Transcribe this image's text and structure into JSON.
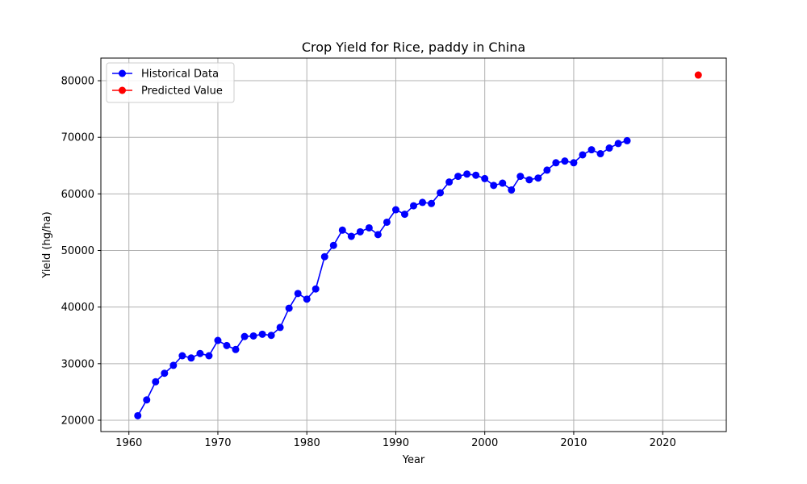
{
  "chart_data": {
    "type": "line",
    "title": "Crop Yield for Rice, paddy in China",
    "xlabel": "Year",
    "ylabel": "Yield (hg/ha)",
    "xlim": [
      1956.85,
      2027.15
    ],
    "ylim": [
      18000,
      84000
    ],
    "xticks": [
      1960,
      1970,
      1980,
      1990,
      2000,
      2010,
      2020
    ],
    "yticks": [
      20000,
      30000,
      40000,
      50000,
      60000,
      70000,
      80000
    ],
    "grid": true,
    "legend_position": "top-left",
    "series": [
      {
        "name": "Historical Data",
        "color": "#0000ff",
        "marker": "circle",
        "line": true,
        "x": [
          1961,
          1962,
          1963,
          1964,
          1965,
          1966,
          1967,
          1968,
          1969,
          1970,
          1971,
          1972,
          1973,
          1974,
          1975,
          1976,
          1977,
          1978,
          1979,
          1980,
          1981,
          1982,
          1983,
          1984,
          1985,
          1986,
          1987,
          1988,
          1989,
          1990,
          1991,
          1992,
          1993,
          1994,
          1995,
          1996,
          1997,
          1998,
          1999,
          2000,
          2001,
          2002,
          2003,
          2004,
          2005,
          2006,
          2007,
          2008,
          2009,
          2010,
          2011,
          2012,
          2013,
          2014,
          2015,
          2016
        ],
        "y": [
          20800,
          23600,
          26800,
          28300,
          29700,
          31400,
          31000,
          31800,
          31400,
          34100,
          33200,
          32500,
          34800,
          34900,
          35200,
          35000,
          36400,
          39800,
          42400,
          41400,
          43200,
          48900,
          50900,
          53600,
          52500,
          53300,
          54000,
          52800,
          55000,
          57200,
          56400,
          57900,
          58500,
          58300,
          60200,
          62100,
          63100,
          63500,
          63300,
          62700,
          61500,
          61900,
          60700,
          63100,
          62500,
          62800,
          64200,
          65500,
          65800,
          65500,
          66900,
          67800,
          67100,
          68100,
          68900,
          69400
        ]
      },
      {
        "name": "Predicted Value",
        "color": "#ff0000",
        "marker": "circle",
        "line": false,
        "x": [
          2024
        ],
        "y": [
          81000
        ]
      }
    ]
  }
}
